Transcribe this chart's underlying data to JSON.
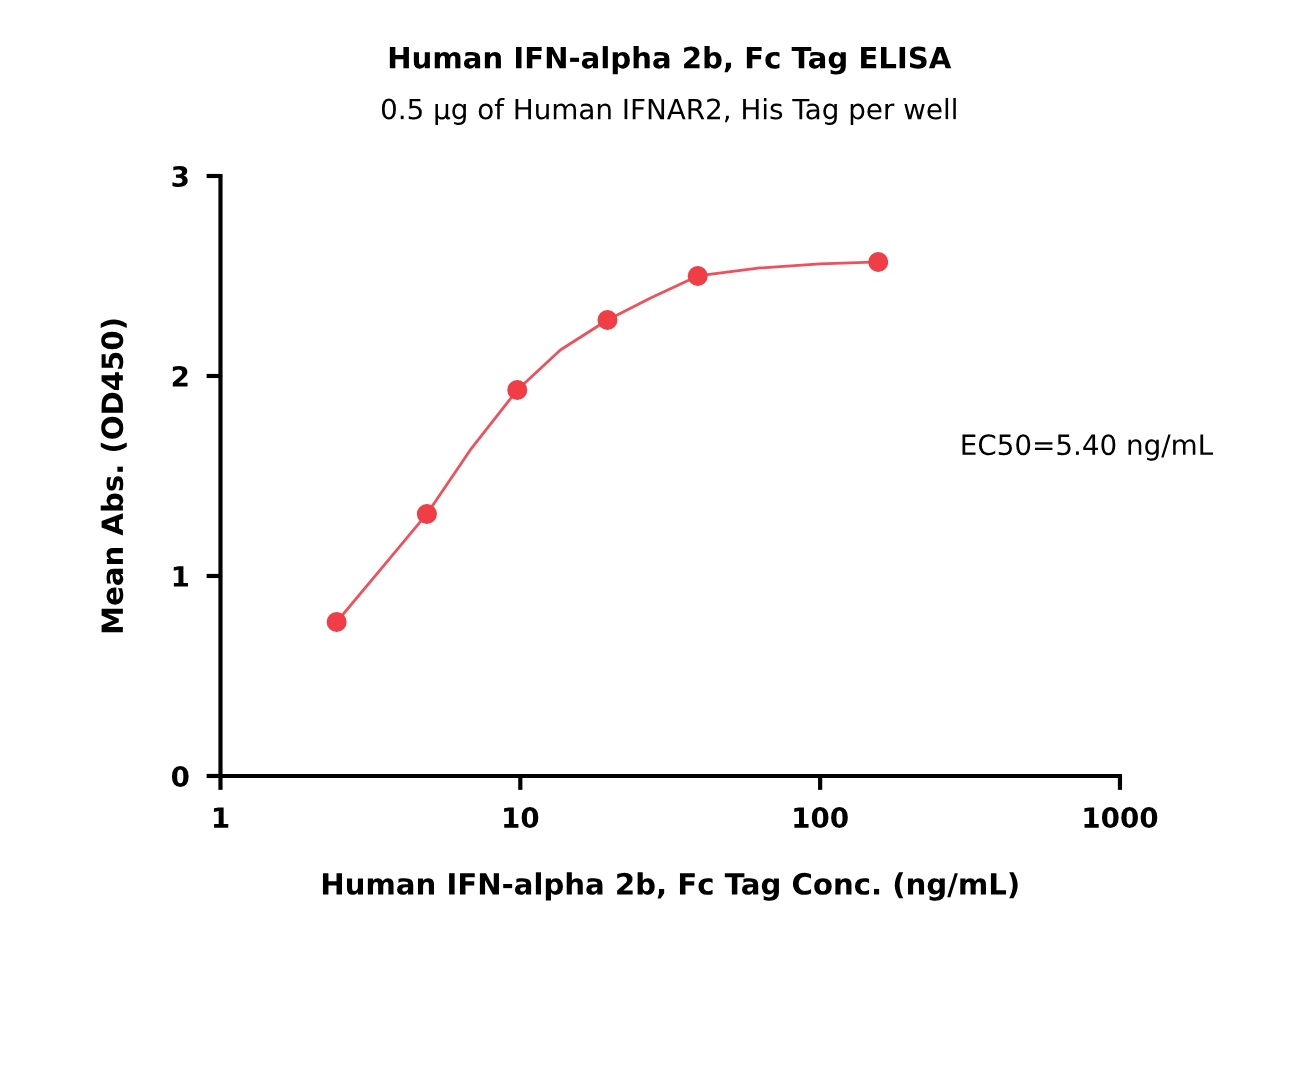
{
  "chart_data": {
    "type": "scatter",
    "title": "Human IFN-alpha 2b, Fc Tag ELISA",
    "subtitle": "0.5 μg of Human IFNAR2, His Tag per well",
    "xlabel": "Human IFN-alpha 2b, Fc Tag Conc. (ng/mL)",
    "ylabel": "Mean Abs. (OD450)",
    "log": "x",
    "xlim": [
      1,
      1000
    ],
    "xticks": [
      1,
      10,
      100,
      1000
    ],
    "ylim": [
      0,
      3
    ],
    "yticks": [
      0,
      1,
      2,
      3
    ],
    "grid": false,
    "legend": false,
    "annotations": [
      "EC50=5.40 ng/mL"
    ],
    "series": [
      {
        "type": "line",
        "color": "#f0505a",
        "marker": "none",
        "line_style": "solid",
        "x": [
          2.44,
          3.41,
          4.88,
          6.81,
          9.77,
          13.6,
          19.53,
          27.2,
          39.06,
          63,
          100,
          156.25
        ],
        "values": [
          0.77,
          1.03,
          1.31,
          1.63,
          1.93,
          2.13,
          2.28,
          2.39,
          2.5,
          2.54,
          2.56,
          2.57
        ]
      },
      {
        "color": "#ef3e46",
        "marker": "circle",
        "x": [
          2.44,
          4.88,
          9.77,
          19.53,
          39.06,
          156.25
        ],
        "values": [
          0.77,
          1.31,
          1.93,
          2.28,
          2.5,
          2.57
        ]
      }
    ]
  }
}
